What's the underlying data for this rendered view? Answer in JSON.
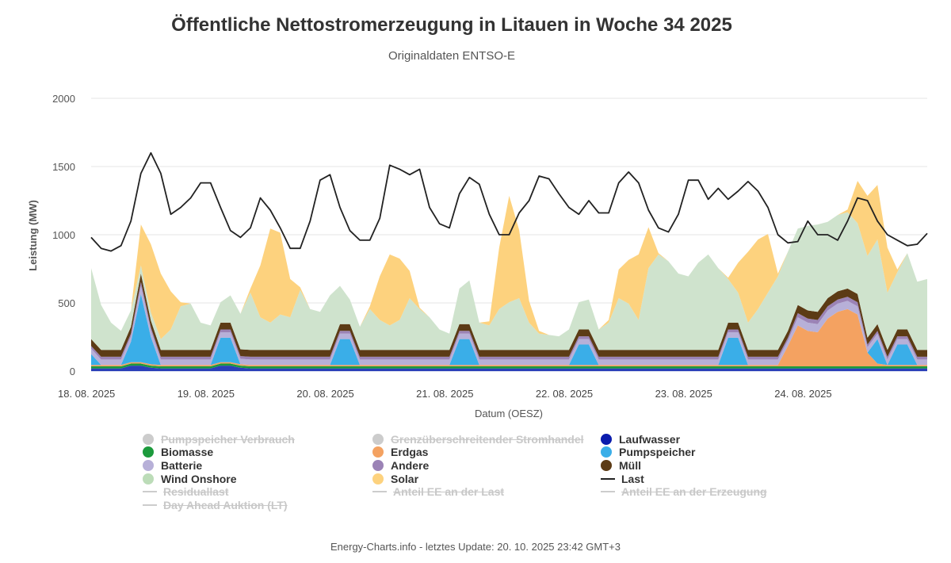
{
  "chart_data": {
    "type": "area",
    "title": "Öffentliche Nettostromerzeugung in Litauen in Woche 34 2025",
    "subtitle": "Originaldaten ENTSO-E",
    "ylabel": "Leistung (MW)",
    "xlabel": "Datum (OESZ)",
    "ylim": [
      0,
      2000
    ],
    "yticks": [
      0,
      500,
      1000,
      1500,
      2000
    ],
    "xlim_hours": [
      0,
      168
    ],
    "xtick_labels": [
      "18. 08. 2025",
      "19. 08. 2025",
      "20. 08. 2025",
      "21. 08. 2025",
      "22. 08. 2025",
      "23. 08. 2025",
      "24. 08. 2025"
    ],
    "xtick_hours": [
      0,
      24,
      48,
      72,
      96,
      120,
      144
    ],
    "legend": [
      {
        "name": "Pumpspeicher Verbrauch",
        "color": "#bbbbbb",
        "symbol": "dot",
        "hidden": true
      },
      {
        "name": "Grenzüberschreitender Stromhandel",
        "color": "#bbbbbb",
        "symbol": "dot",
        "hidden": true
      },
      {
        "name": "Laufwasser",
        "color": "#0b1cad",
        "symbol": "dot",
        "hidden": false
      },
      {
        "name": "Biomasse",
        "color": "#1c9a3c",
        "symbol": "dot",
        "hidden": false
      },
      {
        "name": "Erdgas",
        "color": "#f4a261",
        "symbol": "dot",
        "hidden": false
      },
      {
        "name": "Pumpspeicher",
        "color": "#3aaee8",
        "symbol": "dot",
        "hidden": false
      },
      {
        "name": "Batterie",
        "color": "#b7b0d8",
        "symbol": "dot",
        "hidden": false
      },
      {
        "name": "Andere",
        "color": "#9b83b6",
        "symbol": "dot",
        "hidden": false
      },
      {
        "name": "Müll",
        "color": "#5c3b15",
        "symbol": "dot",
        "hidden": false
      },
      {
        "name": "Wind Onshore",
        "color": "#bcdcb8",
        "symbol": "dot",
        "hidden": false
      },
      {
        "name": "Solar",
        "color": "#fdd27e",
        "symbol": "dot",
        "hidden": false
      },
      {
        "name": "Last",
        "color": "#222222",
        "symbol": "line",
        "hidden": false
      },
      {
        "name": "Residuallast",
        "color": "#bbbbbb",
        "symbol": "line",
        "hidden": true
      },
      {
        "name": "Anteil EE an der Last",
        "color": "#bbbbbb",
        "symbol": "line",
        "hidden": true
      },
      {
        "name": "Anteil EE an der Erzeugung",
        "color": "#bbbbbb",
        "symbol": "line",
        "hidden": true
      },
      {
        "name": "Day Ahead Auktion (LT)",
        "color": "#bbbbbb",
        "symbol": "line",
        "hidden": true
      }
    ],
    "hours": [
      0,
      2,
      4,
      6,
      8,
      10,
      12,
      14,
      16,
      18,
      20,
      22,
      24,
      26,
      28,
      30,
      32,
      34,
      36,
      38,
      40,
      42,
      44,
      46,
      48,
      50,
      52,
      54,
      56,
      58,
      60,
      62,
      64,
      66,
      68,
      70,
      72,
      74,
      76,
      78,
      80,
      82,
      84,
      86,
      88,
      90,
      92,
      94,
      96,
      98,
      100,
      102,
      104,
      106,
      108,
      110,
      112,
      114,
      116,
      118,
      120,
      122,
      124,
      126,
      128,
      130,
      132,
      134,
      136,
      138,
      140,
      142,
      144,
      146,
      148,
      150,
      152,
      154,
      156,
      158,
      160,
      162,
      164,
      166,
      168
    ],
    "series": [
      {
        "name": "Laufwasser",
        "color": "#2a3fb8",
        "values": [
          20,
          20,
          20,
          20,
          40,
          40,
          25,
          20,
          20,
          20,
          20,
          20,
          20,
          40,
          40,
          25,
          20,
          20,
          20,
          20,
          20,
          20,
          20,
          20,
          20,
          20,
          20,
          20,
          20,
          20,
          20,
          20,
          20,
          20,
          20,
          20,
          20,
          20,
          20,
          20,
          20,
          20,
          20,
          20,
          20,
          20,
          20,
          20,
          20,
          20,
          20,
          20,
          20,
          20,
          20,
          20,
          20,
          20,
          20,
          20,
          20,
          20,
          20,
          20,
          20,
          20,
          20,
          20,
          20,
          20,
          20,
          20,
          20,
          20,
          20,
          20,
          20,
          20,
          20,
          20,
          20,
          20,
          20,
          20,
          20
        ]
      },
      {
        "name": "Biomasse",
        "color": "#1c9a3c",
        "values": [
          15,
          15,
          15,
          15,
          15,
          15,
          15,
          15,
          15,
          15,
          15,
          15,
          15,
          15,
          15,
          15,
          15,
          15,
          15,
          15,
          15,
          15,
          15,
          15,
          15,
          15,
          15,
          15,
          15,
          15,
          15,
          15,
          15,
          15,
          15,
          15,
          15,
          15,
          15,
          15,
          15,
          15,
          15,
          15,
          15,
          15,
          15,
          15,
          15,
          15,
          15,
          15,
          15,
          15,
          15,
          15,
          15,
          15,
          15,
          15,
          15,
          15,
          15,
          15,
          15,
          15,
          15,
          15,
          15,
          15,
          15,
          15,
          15,
          15,
          15,
          15,
          15,
          15,
          15,
          15,
          15,
          15,
          15,
          15,
          15
        ]
      },
      {
        "name": "Erdgas",
        "color": "#f4a261",
        "values": [
          10,
          10,
          10,
          10,
          10,
          10,
          10,
          10,
          10,
          10,
          10,
          10,
          10,
          10,
          10,
          10,
          10,
          10,
          10,
          10,
          10,
          10,
          10,
          10,
          10,
          10,
          10,
          10,
          10,
          10,
          10,
          10,
          10,
          10,
          10,
          10,
          10,
          10,
          10,
          10,
          10,
          10,
          10,
          10,
          10,
          10,
          10,
          10,
          10,
          10,
          10,
          10,
          10,
          10,
          10,
          10,
          10,
          10,
          10,
          10,
          10,
          10,
          10,
          10,
          10,
          10,
          10,
          10,
          10,
          10,
          150,
          300,
          260,
          250,
          350,
          400,
          420,
          380,
          100,
          20,
          10,
          10,
          10,
          10,
          10
        ]
      },
      {
        "name": "Pumpspeicher",
        "color": "#3aaee8",
        "values": [
          80,
          0,
          0,
          0,
          150,
          500,
          200,
          0,
          0,
          0,
          0,
          0,
          0,
          180,
          180,
          0,
          0,
          0,
          0,
          0,
          0,
          0,
          0,
          0,
          0,
          190,
          190,
          0,
          0,
          0,
          0,
          0,
          0,
          0,
          0,
          0,
          0,
          190,
          190,
          0,
          0,
          0,
          0,
          0,
          0,
          0,
          0,
          0,
          0,
          150,
          150,
          0,
          0,
          0,
          0,
          0,
          0,
          0,
          0,
          0,
          0,
          0,
          0,
          0,
          200,
          200,
          0,
          0,
          0,
          0,
          0,
          0,
          0,
          0,
          0,
          0,
          0,
          0,
          0,
          180,
          0,
          150,
          150,
          0,
          0
        ]
      },
      {
        "name": "Batterie",
        "color": "#b7b0d8",
        "values": [
          40,
          40,
          40,
          40,
          40,
          60,
          50,
          40,
          40,
          40,
          40,
          40,
          40,
          40,
          40,
          40,
          40,
          40,
          40,
          40,
          40,
          40,
          40,
          40,
          40,
          40,
          40,
          40,
          40,
          40,
          40,
          40,
          40,
          40,
          40,
          40,
          40,
          40,
          40,
          40,
          40,
          40,
          40,
          40,
          40,
          40,
          40,
          40,
          40,
          40,
          40,
          40,
          40,
          40,
          40,
          40,
          40,
          40,
          40,
          40,
          40,
          40,
          40,
          40,
          40,
          40,
          40,
          40,
          40,
          40,
          40,
          60,
          60,
          60,
          60,
          60,
          60,
          60,
          40,
          40,
          40,
          40,
          40,
          40,
          40
        ]
      },
      {
        "name": "Andere",
        "color": "#9b83b6",
        "values": [
          20,
          20,
          20,
          20,
          20,
          30,
          20,
          20,
          20,
          20,
          20,
          20,
          20,
          20,
          20,
          20,
          20,
          20,
          20,
          20,
          20,
          20,
          20,
          20,
          20,
          20,
          20,
          20,
          20,
          20,
          20,
          20,
          20,
          20,
          20,
          20,
          20,
          20,
          20,
          20,
          20,
          20,
          20,
          20,
          20,
          20,
          20,
          20,
          20,
          20,
          20,
          20,
          20,
          20,
          20,
          20,
          20,
          20,
          20,
          20,
          20,
          20,
          20,
          20,
          20,
          20,
          20,
          20,
          20,
          20,
          20,
          30,
          30,
          30,
          30,
          30,
          30,
          30,
          20,
          20,
          20,
          20,
          20,
          20,
          20
        ]
      },
      {
        "name": "Müll",
        "color": "#5c3b15",
        "values": [
          50,
          50,
          50,
          50,
          50,
          60,
          50,
          50,
          50,
          50,
          50,
          50,
          50,
          50,
          50,
          50,
          50,
          50,
          50,
          50,
          50,
          50,
          50,
          50,
          50,
          50,
          50,
          50,
          50,
          50,
          50,
          50,
          50,
          50,
          50,
          50,
          50,
          50,
          50,
          50,
          50,
          50,
          50,
          50,
          50,
          50,
          50,
          50,
          50,
          50,
          50,
          50,
          50,
          50,
          50,
          50,
          50,
          50,
          50,
          50,
          50,
          50,
          50,
          50,
          50,
          50,
          50,
          50,
          50,
          50,
          50,
          60,
          60,
          60,
          60,
          60,
          60,
          60,
          50,
          50,
          50,
          50,
          50,
          50,
          50
        ]
      },
      {
        "name": "Wind Onshore",
        "color": "#cfe3cd",
        "values": [
          520,
          330,
          200,
          140,
          120,
          60,
          60,
          80,
          150,
          320,
          340,
          200,
          180,
          150,
          200,
          260,
          420,
          240,
          200,
          260,
          240,
          440,
          300,
          280,
          400,
          280,
          180,
          170,
          300,
          220,
          180,
          220,
          380,
          300,
          240,
          150,
          120,
          260,
          320,
          200,
          180,
          300,
          350,
          380,
          200,
          120,
          110,
          100,
          150,
          200,
          220,
          150,
          200,
          380,
          340,
          220,
          600,
          700,
          650,
          560,
          540,
          640,
          700,
          600,
          320,
          220,
          200,
          300,
          420,
          540,
          580,
          560,
          620,
          640,
          560,
          560,
          560,
          520,
          600,
          620,
          420,
          420,
          560,
          500,
          520
        ]
      },
      {
        "name": "Solar",
        "color": "#fdd27e",
        "values": [
          0,
          0,
          0,
          0,
          0,
          300,
          500,
          480,
          280,
          30,
          0,
          0,
          0,
          0,
          0,
          0,
          30,
          380,
          690,
          600,
          280,
          20,
          0,
          0,
          0,
          0,
          0,
          0,
          20,
          320,
          520,
          450,
          200,
          10,
          0,
          0,
          0,
          0,
          0,
          0,
          30,
          450,
          780,
          500,
          160,
          20,
          0,
          0,
          0,
          0,
          0,
          0,
          20,
          210,
          320,
          480,
          300,
          10,
          0,
          0,
          0,
          0,
          0,
          0,
          10,
          220,
          520,
          510,
          430,
          20,
          0,
          0,
          0,
          0,
          0,
          0,
          20,
          310,
          440,
          400,
          330,
          20,
          0,
          0,
          0
        ]
      },
      {
        "name": "Last",
        "color": "#222222",
        "values": [
          980,
          900,
          880,
          920,
          1100,
          1450,
          1600,
          1450,
          1150,
          1200,
          1270,
          1380,
          1380,
          1200,
          1030,
          980,
          1050,
          1270,
          1180,
          1050,
          900,
          900,
          1100,
          1400,
          1440,
          1200,
          1030,
          960,
          960,
          1120,
          1510,
          1480,
          1440,
          1480,
          1200,
          1080,
          1050,
          1300,
          1420,
          1370,
          1150,
          1000,
          1000,
          1160,
          1250,
          1430,
          1410,
          1300,
          1200,
          1150,
          1250,
          1160,
          1160,
          1380,
          1460,
          1380,
          1180,
          1050,
          1020,
          1150,
          1400,
          1400,
          1260,
          1340,
          1260,
          1320,
          1390,
          1320,
          1200,
          1000,
          940,
          950,
          1100,
          1000,
          1000,
          960,
          1100,
          1270,
          1250,
          1100,
          1000,
          960,
          920,
          930,
          1010
        ]
      }
    ]
  },
  "footer": "Energy-Charts.info - letztes Update: 20. 10. 2025 23:42 GMT+3"
}
